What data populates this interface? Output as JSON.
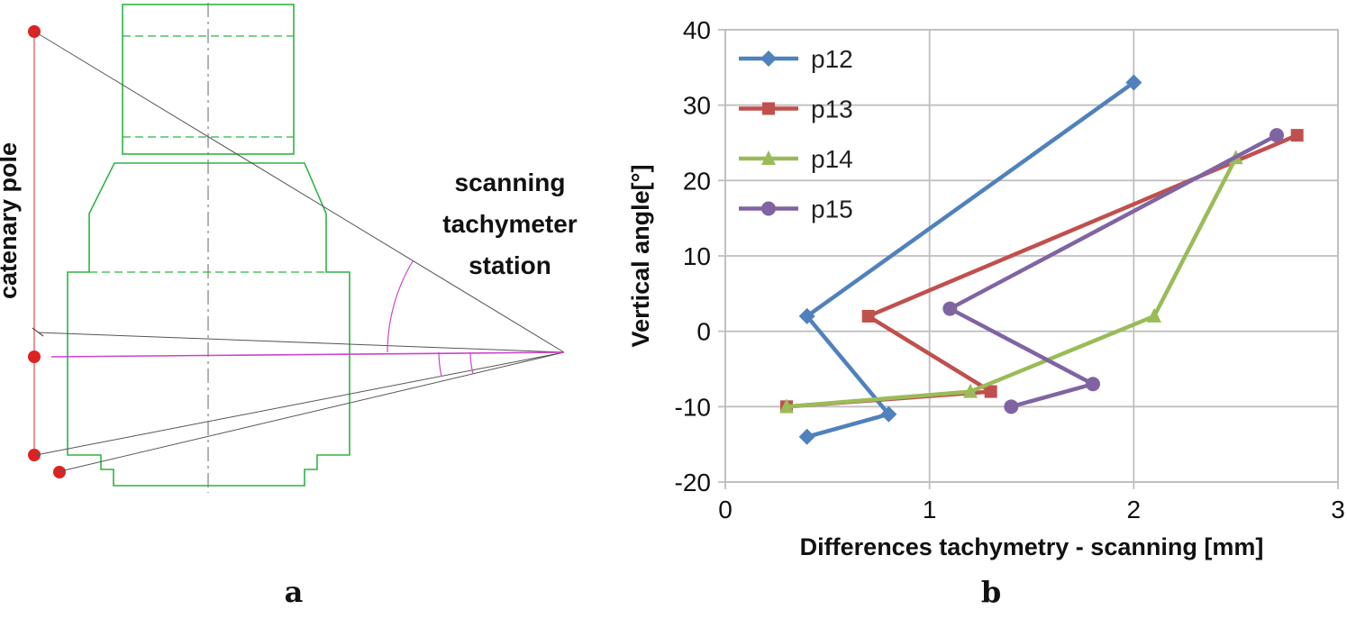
{
  "figure": {
    "panel_a_label": "a",
    "panel_b_label": "b"
  },
  "diagram": {
    "pole_label": "catenary pole",
    "station_label_lines": [
      "scanning",
      "tachymeter",
      "station"
    ],
    "colors": {
      "vehicle_outline": "#2FB344",
      "pole_dot": "#DD2222",
      "pole_line": "#E06666",
      "sight_line": "#CC44CC",
      "ray": "#555555",
      "centerline": "#666666"
    }
  },
  "chart_data": {
    "type": "line",
    "title": "",
    "xlabel": "Differences tachymetry - scanning [mm]",
    "ylabel": "Vertical angle[°]",
    "xlim": [
      0,
      3
    ],
    "ylim": [
      -20,
      40
    ],
    "xticks": [
      0,
      1,
      2,
      3
    ],
    "yticks": [
      -20,
      -10,
      0,
      10,
      20,
      30,
      40
    ],
    "grid": true,
    "grid_color": "#BFBFBF",
    "legend_position": "top-left-inside",
    "series": [
      {
        "name": "p12",
        "marker": "diamond",
        "color": "#4F81BD",
        "points": [
          [
            2.0,
            33
          ],
          [
            0.4,
            2
          ],
          [
            0.8,
            -11
          ],
          [
            0.4,
            -14
          ]
        ]
      },
      {
        "name": "p13",
        "marker": "square",
        "color": "#C0504D",
        "points": [
          [
            2.8,
            26
          ],
          [
            0.7,
            2
          ],
          [
            1.3,
            -8
          ],
          [
            0.3,
            -10
          ]
        ]
      },
      {
        "name": "p14",
        "marker": "triangle",
        "color": "#9BBB59",
        "points": [
          [
            2.5,
            23
          ],
          [
            2.1,
            2
          ],
          [
            1.2,
            -8
          ],
          [
            0.3,
            -10
          ]
        ]
      },
      {
        "name": "p15",
        "marker": "circle",
        "color": "#8064A2",
        "points": [
          [
            2.7,
            26
          ],
          [
            1.1,
            3
          ],
          [
            1.8,
            -7
          ],
          [
            1.4,
            -10
          ]
        ]
      }
    ]
  }
}
